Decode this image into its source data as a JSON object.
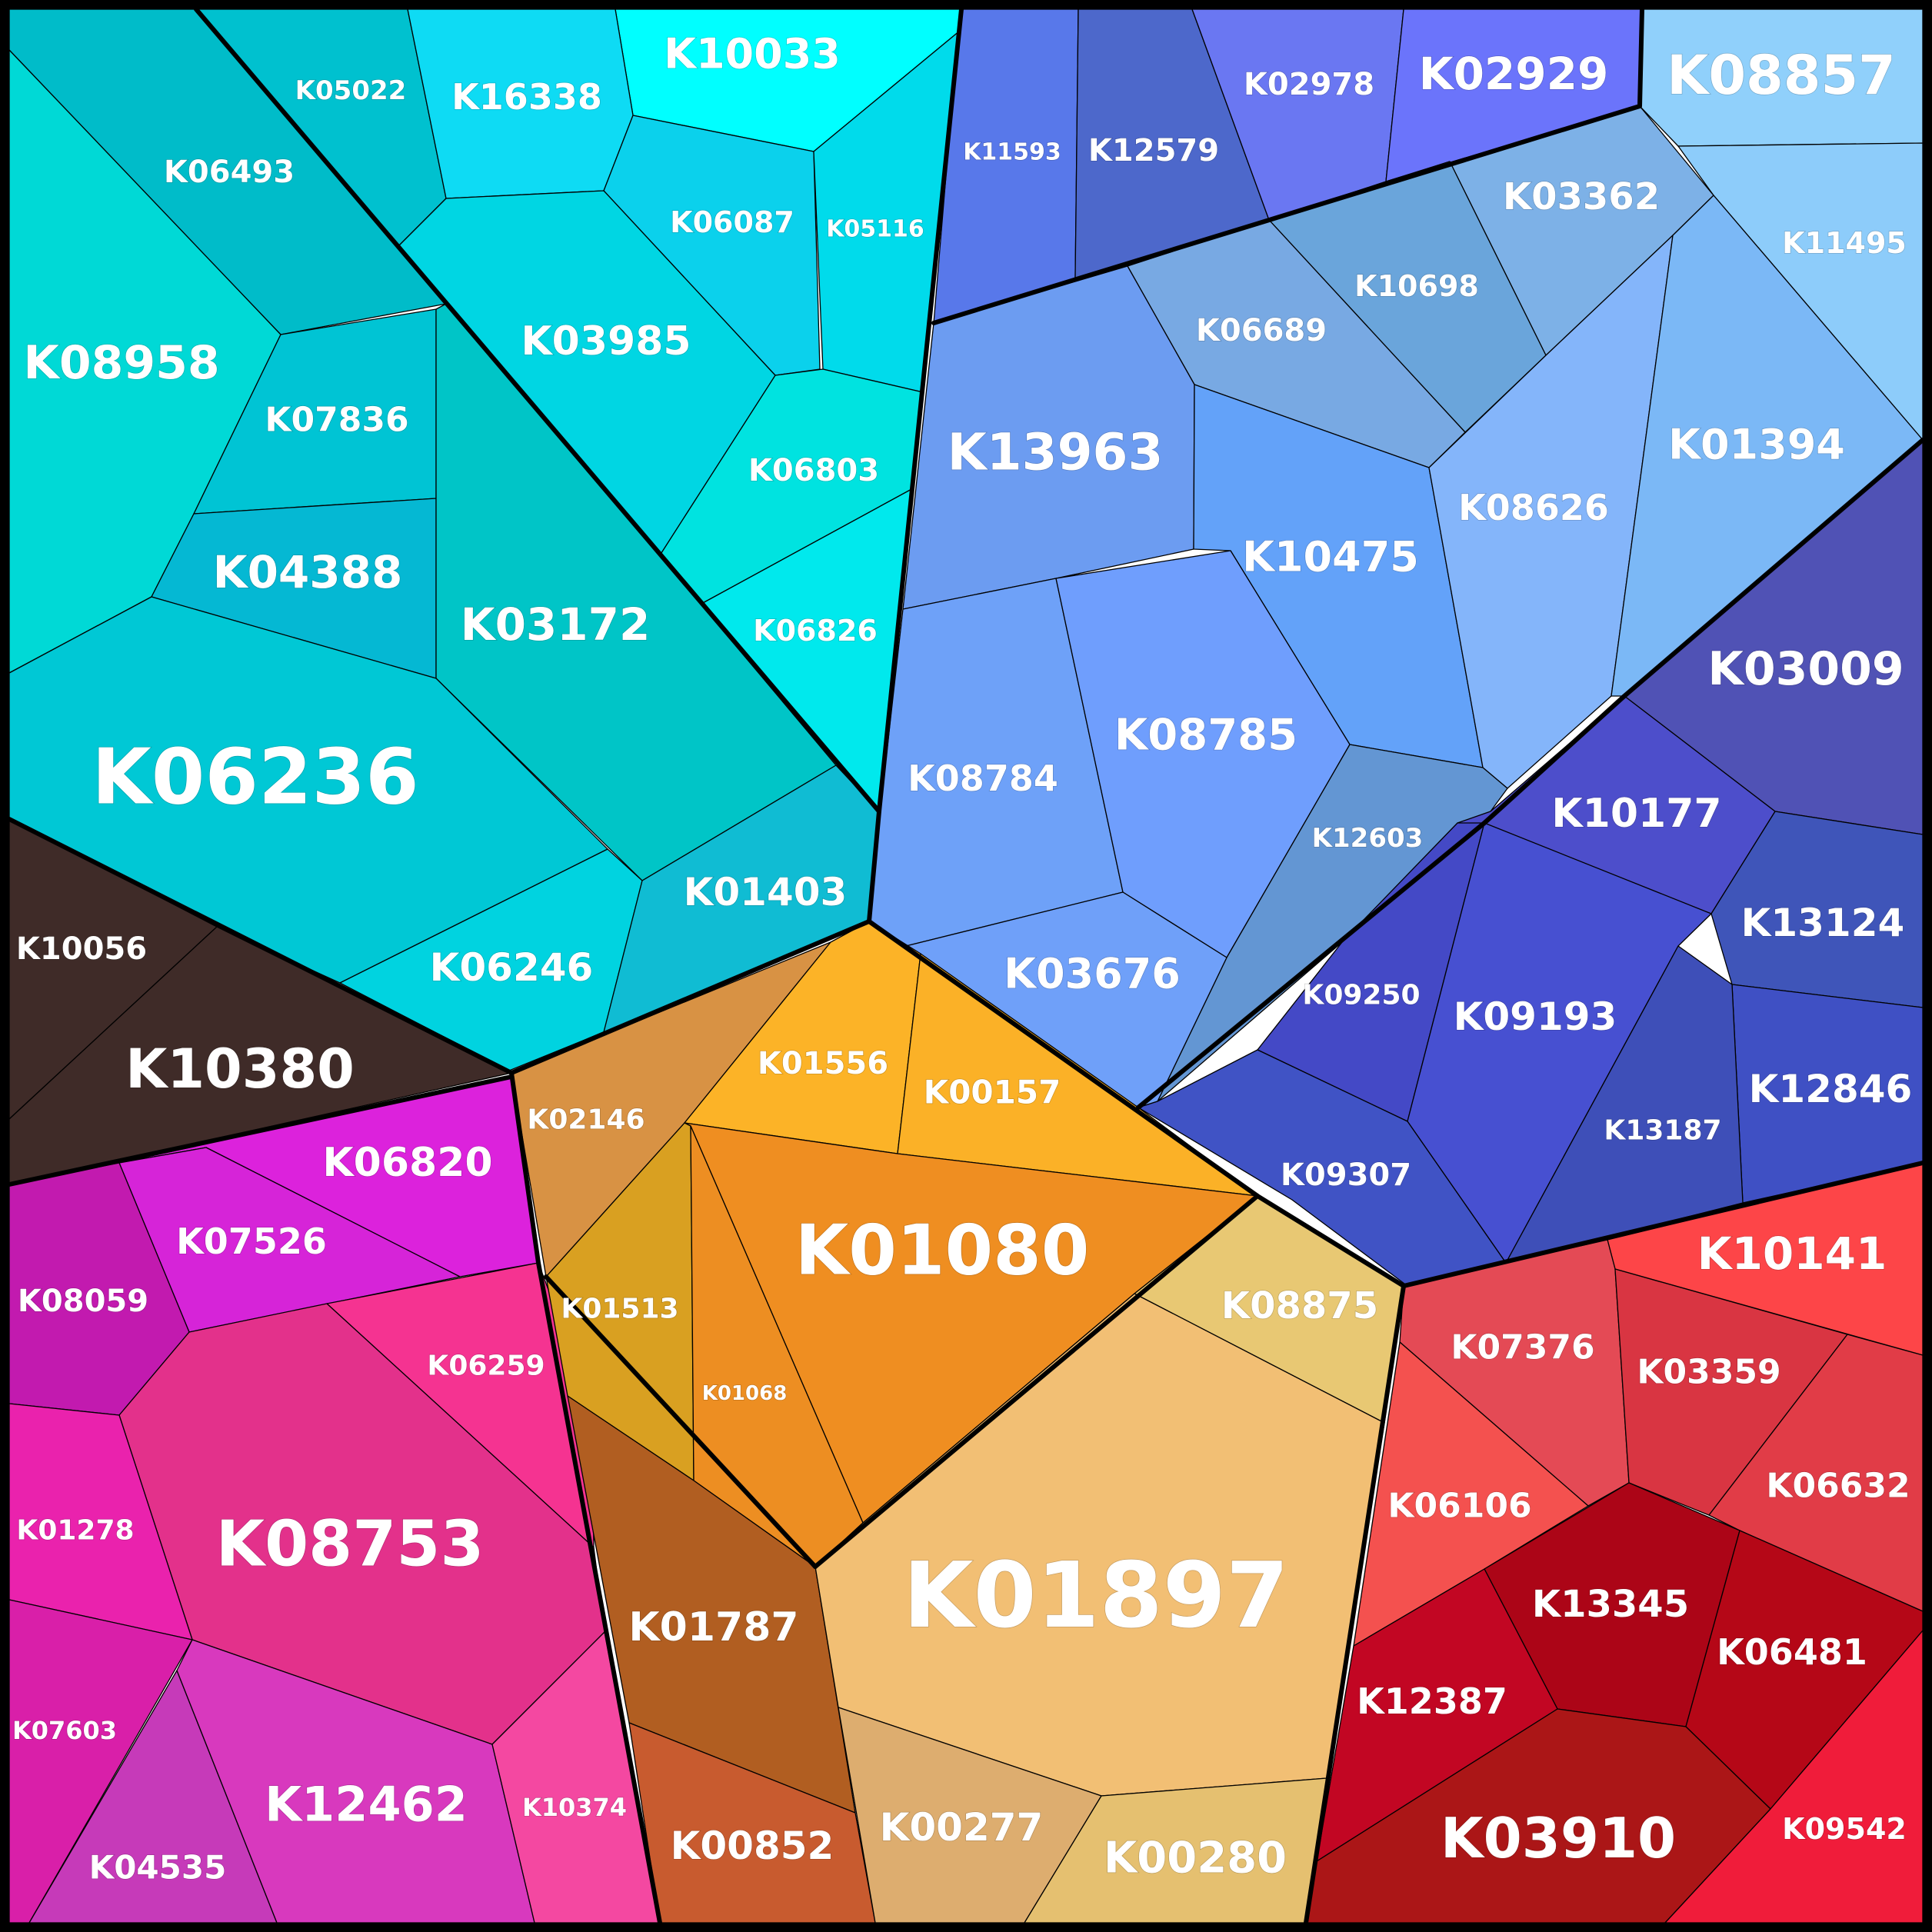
{
  "cells": [
    {
      "id": "K10033",
      "color": "#00ffff",
      "group": "cyan"
    },
    {
      "id": "K05022",
      "color": "#00c1cf",
      "group": "cyan"
    },
    {
      "id": "K16338",
      "color": "#0edbf4",
      "group": "cyan"
    },
    {
      "id": "K06493",
      "color": "#00bcc9",
      "group": "cyan"
    },
    {
      "id": "K08958",
      "color": "#00d9d6",
      "group": "cyan"
    },
    {
      "id": "K06087",
      "color": "#0bd1ec",
      "group": "cyan"
    },
    {
      "id": "K05116",
      "color": "#00dbeb",
      "group": "cyan"
    },
    {
      "id": "K03985",
      "color": "#00d6e3",
      "group": "cyan"
    },
    {
      "id": "K07836",
      "color": "#00c4d4",
      "group": "cyan"
    },
    {
      "id": "K04388",
      "color": "#05b8d3",
      "group": "cyan"
    },
    {
      "id": "K03172",
      "color": "#00c5c7",
      "group": "cyan"
    },
    {
      "id": "K06803",
      "color": "#00e3e0",
      "group": "cyan"
    },
    {
      "id": "K06826",
      "color": "#00e9ed",
      "group": "cyan"
    },
    {
      "id": "K06236",
      "color": "#00c8d5",
      "group": "cyan"
    },
    {
      "id": "K06246",
      "color": "#00d3e0",
      "group": "cyan"
    },
    {
      "id": "K01403",
      "color": "#10bcd3",
      "group": "cyan"
    },
    {
      "id": "K11593",
      "color": "#5878ea",
      "group": "blue"
    },
    {
      "id": "K12579",
      "color": "#4d68cb",
      "group": "blue"
    },
    {
      "id": "K02978",
      "color": "#6a77f2",
      "group": "blue"
    },
    {
      "id": "K02929",
      "color": "#6b74fb",
      "group": "blue"
    },
    {
      "id": "K08857",
      "color": "#90d0fb",
      "group": "blue"
    },
    {
      "id": "K11495",
      "color": "#8dccfa",
      "group": "blue"
    },
    {
      "id": "K03362",
      "color": "#7db1e7",
      "group": "blue"
    },
    {
      "id": "K10698",
      "color": "#6aa5db",
      "group": "blue"
    },
    {
      "id": "K06689",
      "color": "#78a9e3",
      "group": "blue"
    },
    {
      "id": "K13963",
      "color": "#6c9cf1",
      "group": "blue"
    },
    {
      "id": "K10475",
      "color": "#63a2f9",
      "group": "blue"
    },
    {
      "id": "K08626",
      "color": "#84b5fa",
      "group": "blue"
    },
    {
      "id": "K01394",
      "color": "#7bb8f6",
      "group": "blue"
    },
    {
      "id": "K03009",
      "color": "#5052b5",
      "group": "blue"
    },
    {
      "id": "K08784",
      "color": "#6ea1f8",
      "group": "blue"
    },
    {
      "id": "K08785",
      "color": "#6f9efd",
      "group": "blue"
    },
    {
      "id": "K12603",
      "color": "#6396d3",
      "group": "blue"
    },
    {
      "id": "K10177",
      "color": "#4d4ecb",
      "group": "blue"
    },
    {
      "id": "K13124",
      "color": "#3f55b9",
      "group": "blue"
    },
    {
      "id": "K03676",
      "color": "#6fa0f9",
      "group": "blue"
    },
    {
      "id": "K09250",
      "color": "#4449c6",
      "group": "blue"
    },
    {
      "id": "K09193",
      "color": "#4750d1",
      "group": "blue"
    },
    {
      "id": "K12846",
      "color": "#3f50c4",
      "group": "blue"
    },
    {
      "id": "K13187",
      "color": "#3e4fb8",
      "group": "blue"
    },
    {
      "id": "K09307",
      "color": "#4053c5",
      "group": "blue"
    },
    {
      "id": "K10056",
      "color": "#3f2b28",
      "group": "dark"
    },
    {
      "id": "K10380",
      "color": "#3f2b28",
      "group": "dark"
    },
    {
      "id": "K06820",
      "color": "#dc22dc",
      "group": "magenta"
    },
    {
      "id": "K07526",
      "color": "#d624d8",
      "group": "magenta"
    },
    {
      "id": "K08059",
      "color": "#c21aaf",
      "group": "magenta"
    },
    {
      "id": "K06259",
      "color": "#f53391",
      "group": "magenta"
    },
    {
      "id": "K08753",
      "color": "#e3318b",
      "group": "magenta"
    },
    {
      "id": "K01278",
      "color": "#ea22ad",
      "group": "magenta"
    },
    {
      "id": "K07603",
      "color": "#d91fa9",
      "group": "magenta"
    },
    {
      "id": "K04535",
      "color": "#c63ab9",
      "group": "magenta"
    },
    {
      "id": "K12462",
      "color": "#d839be",
      "group": "magenta"
    },
    {
      "id": "K10374",
      "color": "#f448a1",
      "group": "magenta"
    },
    {
      "id": "K02146",
      "color": "#d89244",
      "group": "orange"
    },
    {
      "id": "K01556",
      "color": "#fcb327",
      "group": "orange"
    },
    {
      "id": "K00157",
      "color": "#fbb127",
      "group": "orange"
    },
    {
      "id": "K01080",
      "color": "#ef8e21",
      "group": "orange"
    },
    {
      "id": "K01513",
      "color": "#d9a021",
      "group": "orange"
    },
    {
      "id": "K01068",
      "color": "#ed8e22",
      "group": "orange"
    },
    {
      "id": "K08875",
      "color": "#e8c873",
      "group": "orange"
    },
    {
      "id": "K01787",
      "color": "#b15e21",
      "group": "orange"
    },
    {
      "id": "K01897",
      "color": "#f2bf74",
      "group": "orange"
    },
    {
      "id": "K00852",
      "color": "#c85b2f",
      "group": "orange"
    },
    {
      "id": "K00277",
      "color": "#ddad6f",
      "group": "orange"
    },
    {
      "id": "K00280",
      "color": "#e5c070",
      "group": "orange"
    },
    {
      "id": "K10141",
      "color": "#fd4548",
      "group": "red"
    },
    {
      "id": "K07376",
      "color": "#e44a55",
      "group": "red"
    },
    {
      "id": "K03359",
      "color": "#d93542",
      "group": "red"
    },
    {
      "id": "K06632",
      "color": "#e13c47",
      "group": "red"
    },
    {
      "id": "K06106",
      "color": "#f4514f",
      "group": "red"
    },
    {
      "id": "K13345",
      "color": "#ac0517",
      "group": "red"
    },
    {
      "id": "K06481",
      "color": "#b50717",
      "group": "red"
    },
    {
      "id": "K12387",
      "color": "#c20623",
      "group": "red"
    },
    {
      "id": "K03910",
      "color": "#ab1617",
      "group": "red"
    },
    {
      "id": "K09542",
      "color": "#f01c3a",
      "group": "red"
    }
  ]
}
